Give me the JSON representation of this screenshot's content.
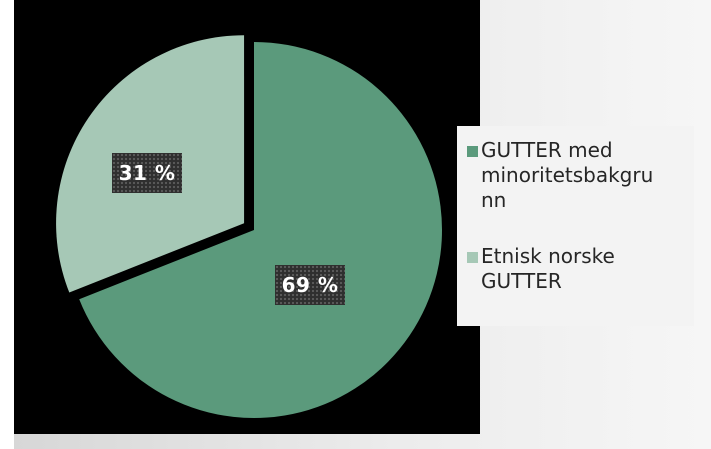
{
  "chart_data": {
    "type": "pie",
    "title": "",
    "slices": [
      {
        "label": "GUTTER med minoritetsbakgrunn",
        "value": 69,
        "data_label": "69 %",
        "color": "#5b9a7c"
      },
      {
        "label": "Etnisk norske GUTTER",
        "value": 31,
        "data_label": "31 %",
        "color": "#a6c8b6",
        "exploded": true
      }
    ],
    "legend": {
      "position": "right",
      "lines": [
        [
          "GUTTER med",
          "minoritetsbakgru",
          "nn"
        ],
        [
          "Etnisk norske",
          "GUTTER"
        ]
      ]
    },
    "background": "#000000"
  }
}
